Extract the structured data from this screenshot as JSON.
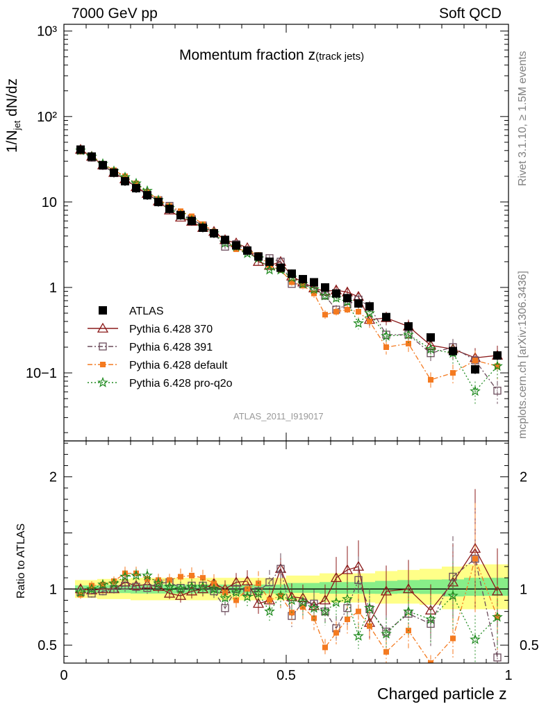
{
  "header": {
    "left": "7000 GeV pp",
    "right": "Soft QCD"
  },
  "side_labels": {
    "rivet": "Rivet 3.1.10, ≥ 1.5M events",
    "mcplots": "mcplots.cern.ch [arXiv:1306.3436]"
  },
  "chart_data": {
    "type": "scatter",
    "title": "Momentum fraction z",
    "title_sub": "(track jets)",
    "analysis_label": "ATLAS_2011_I919017",
    "xlabel": "Charged particle z",
    "ylabel_main": "1/N",
    "ylabel_sub": "jet",
    "ylabel_rest": " dN/dz",
    "ylabel_ratio": "Ratio to ATLAS",
    "xlim": [
      0,
      1
    ],
    "ylim_main": [
      0.016,
      1200
    ],
    "log_y_main": true,
    "ylim_ratio": [
      0.34,
      2.32
    ],
    "x_ticks": [
      "0",
      "0.5",
      "1"
    ],
    "y_ticks_main": [
      "10−1",
      "1",
      "10",
      "10²",
      "10³"
    ],
    "y_ticks_ratio": [
      "0.5",
      "1",
      "2"
    ],
    "legend_position": "middle-left",
    "x": [
      0.0375,
      0.0625,
      0.0875,
      0.1125,
      0.1375,
      0.1625,
      0.1875,
      0.2125,
      0.2375,
      0.2625,
      0.2875,
      0.3125,
      0.3375,
      0.3625,
      0.3875,
      0.4125,
      0.4375,
      0.4625,
      0.4875,
      0.5125,
      0.5375,
      0.5625,
      0.5875,
      0.6125,
      0.6375,
      0.6625,
      0.6875,
      0.725,
      0.775,
      0.825,
      0.875,
      0.925,
      0.975
    ],
    "reference": {
      "name": "ATLAS",
      "values": [
        41,
        34,
        27,
        22,
        17.5,
        14.5,
        12,
        10,
        8.3,
        7,
        6,
        5,
        4.3,
        3.6,
        3.1,
        2.7,
        2.3,
        2.0,
        1.7,
        1.45,
        1.25,
        1.15,
        1.0,
        0.85,
        0.75,
        0.65,
        0.6,
        0.45,
        0.35,
        0.26,
        0.18,
        0.11,
        0.16
      ],
      "band_low": [
        0.92,
        0.92,
        0.91,
        0.91,
        0.91,
        0.9,
        0.9,
        0.9,
        0.9,
        0.9,
        0.9,
        0.9,
        0.9,
        0.9,
        0.9,
        0.9,
        0.9,
        0.9,
        0.9,
        0.9,
        0.9,
        0.9,
        0.88,
        0.88,
        0.88,
        0.88,
        0.88,
        0.87,
        0.87,
        0.86,
        0.82,
        0.82,
        0.82
      ],
      "band_high": [
        1.08,
        1.08,
        1.09,
        1.09,
        1.09,
        1.1,
        1.1,
        1.1,
        1.1,
        1.1,
        1.1,
        1.1,
        1.1,
        1.1,
        1.1,
        1.1,
        1.1,
        1.1,
        1.1,
        1.12,
        1.12,
        1.12,
        1.14,
        1.14,
        1.14,
        1.14,
        1.14,
        1.16,
        1.17,
        1.18,
        1.2,
        1.22,
        1.22
      ]
    },
    "series": [
      {
        "name": "Pythia 6.428 370",
        "color": "#8b1a1a",
        "dash": "",
        "marker": "triangle",
        "values": [
          41,
          34,
          27,
          22,
          18.5,
          15,
          12.5,
          10.2,
          8.0,
          6.6,
          5.9,
          5.0,
          4.5,
          3.6,
          3.3,
          2.9,
          2.0,
          1.8,
          2.0,
          1.35,
          1.15,
          0.98,
          0.9,
          0.93,
          0.88,
          0.78,
          0.42,
          0.44,
          0.35,
          0.21,
          0.19,
          0.15,
          0.16
        ],
        "ratio": [
          1.0,
          0.99,
          1.0,
          1.0,
          1.06,
          1.03,
          1.04,
          1.02,
          0.96,
          0.94,
          0.98,
          1.0,
          1.05,
          1.0,
          1.06,
          1.07,
          0.87,
          0.9,
          1.18,
          0.93,
          0.92,
          0.85,
          0.9,
          1.1,
          1.17,
          1.2,
          0.7,
          0.98,
          1.0,
          0.81,
          1.06,
          1.36,
          0.98
        ],
        "err": [
          0.03,
          0.03,
          0.03,
          0.03,
          0.04,
          0.04,
          0.04,
          0.04,
          0.04,
          0.05,
          0.05,
          0.05,
          0.06,
          0.06,
          0.06,
          0.07,
          0.08,
          0.08,
          0.09,
          0.1,
          0.1,
          0.11,
          0.12,
          0.13,
          0.14,
          0.15,
          0.16,
          0.18,
          0.2,
          0.22,
          0.25,
          0.3,
          0.3
        ]
      },
      {
        "name": "Pythia 6.428 391",
        "color": "#6a4a5a",
        "dash": "7 3 2 3",
        "marker": "square",
        "values": [
          40,
          33,
          26.5,
          22,
          18,
          15,
          12,
          10.5,
          9.0,
          7.2,
          6.3,
          5.3,
          4.3,
          3.0,
          3.2,
          2.7,
          2.3,
          2.2,
          2.0,
          1.1,
          1.1,
          1.0,
          0.8,
          0.55,
          0.63,
          0.72,
          0.6,
          0.28,
          0.28,
          0.17,
          0.2,
          0.14,
          0.062
        ],
        "ratio": [
          0.97,
          0.96,
          0.98,
          1.0,
          1.03,
          1.02,
          1.01,
          1.05,
          1.06,
          1.01,
          1.03,
          1.03,
          0.98,
          0.83,
          1.0,
          0.98,
          0.98,
          1.06,
          1.18,
          0.76,
          0.88,
          0.87,
          0.8,
          0.65,
          0.83,
          1.08,
          0.82,
          0.62,
          0.78,
          0.69,
          1.11,
          1.27,
          0.39
        ],
        "err": [
          0.03,
          0.03,
          0.03,
          0.03,
          0.04,
          0.04,
          0.04,
          0.04,
          0.04,
          0.05,
          0.05,
          0.05,
          0.06,
          0.06,
          0.06,
          0.07,
          0.08,
          0.08,
          0.09,
          0.1,
          0.1,
          0.11,
          0.12,
          0.13,
          0.14,
          0.15,
          0.16,
          0.18,
          0.2,
          0.22,
          0.25,
          0.3,
          0.3
        ]
      },
      {
        "name": "Pythia 6.428 default",
        "color": "#f47a20",
        "dash": "7 3 2 3",
        "marker": "smallsquare",
        "values": [
          39,
          35,
          28,
          23.5,
          20,
          16.5,
          13,
          10.8,
          9.0,
          7.8,
          6.8,
          5.5,
          4.5,
          3.5,
          2.8,
          2.7,
          2.4,
          1.8,
          1.6,
          1.15,
          1.05,
          0.85,
          0.48,
          0.52,
          0.55,
          0.52,
          0.4,
          0.2,
          0.22,
          0.083,
          0.1,
          0.14,
          0.12
        ],
        "ratio": [
          0.95,
          1.03,
          1.04,
          1.07,
          1.14,
          1.14,
          1.09,
          1.08,
          1.08,
          1.11,
          1.12,
          1.1,
          1.05,
          0.97,
          0.9,
          1.0,
          1.05,
          0.9,
          0.94,
          0.79,
          0.84,
          0.74,
          0.48,
          0.61,
          0.73,
          0.8,
          0.67,
          0.44,
          0.63,
          0.32,
          0.56,
          1.27,
          0.75
        ],
        "err": [
          0.03,
          0.03,
          0.03,
          0.03,
          0.04,
          0.04,
          0.04,
          0.04,
          0.04,
          0.05,
          0.05,
          0.05,
          0.06,
          0.06,
          0.06,
          0.07,
          0.08,
          0.08,
          0.09,
          0.1,
          0.1,
          0.11,
          0.12,
          0.13,
          0.14,
          0.15,
          0.16,
          0.18,
          0.2,
          0.22,
          0.25,
          0.3,
          0.3
        ]
      },
      {
        "name": "Pythia 6.428 pro-q2o",
        "color": "#1e8a1e",
        "dash": "2 3",
        "marker": "star",
        "values": [
          40,
          34,
          28,
          23,
          19.5,
          16.5,
          13.5,
          10.5,
          8.5,
          7.0,
          6.1,
          5.1,
          4.3,
          3.3,
          3.0,
          2.5,
          2.2,
          1.6,
          1.6,
          1.3,
          1.1,
          0.95,
          0.8,
          0.75,
          0.68,
          0.38,
          0.5,
          0.27,
          0.28,
          0.19,
          0.17,
          0.061,
          0.12
        ],
        "ratio": [
          0.97,
          1.0,
          1.04,
          1.05,
          1.11,
          1.12,
          1.12,
          1.05,
          1.02,
          1.0,
          1.02,
          1.02,
          1.0,
          0.92,
          0.97,
          0.93,
          0.96,
          0.8,
          0.94,
          0.9,
          0.88,
          0.83,
          0.8,
          0.88,
          0.91,
          0.58,
          0.83,
          0.6,
          0.8,
          0.73,
          0.94,
          0.55,
          0.75
        ],
        "err": [
          0.03,
          0.03,
          0.03,
          0.03,
          0.04,
          0.04,
          0.04,
          0.04,
          0.04,
          0.05,
          0.05,
          0.05,
          0.06,
          0.06,
          0.06,
          0.07,
          0.08,
          0.08,
          0.09,
          0.1,
          0.1,
          0.11,
          0.12,
          0.13,
          0.14,
          0.15,
          0.16,
          0.18,
          0.2,
          0.22,
          0.25,
          0.3,
          0.3
        ]
      }
    ]
  }
}
